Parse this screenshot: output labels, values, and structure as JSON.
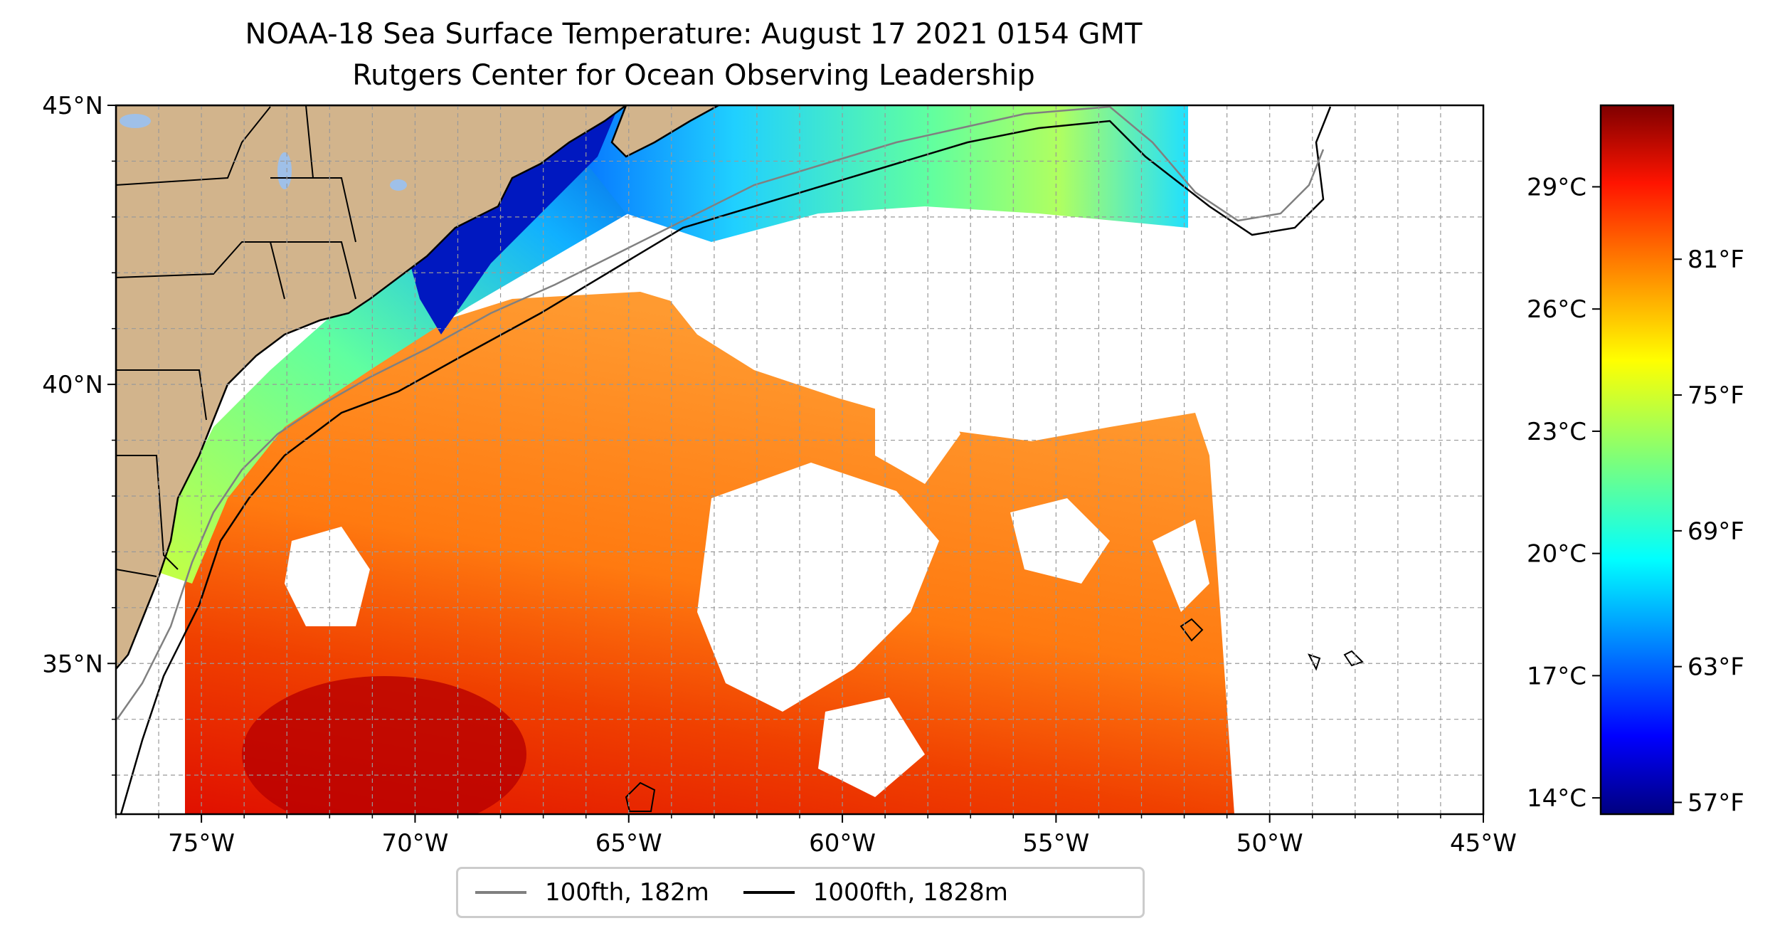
{
  "title": {
    "line1": "NOAA-18 Sea Surface Temperature: August 17 2021 0154 GMT",
    "line2": "Rutgers Center for Ocean Observing Leadership"
  },
  "map": {
    "lon_range": [
      -77,
      -45
    ],
    "lat_range": [
      32.3,
      45
    ],
    "lon_ticks": [
      {
        "value": -75,
        "label": "75°W"
      },
      {
        "value": -70,
        "label": "70°W"
      },
      {
        "value": -65,
        "label": "65°W"
      },
      {
        "value": -60,
        "label": "60°W"
      },
      {
        "value": -55,
        "label": "55°W"
      },
      {
        "value": -50,
        "label": "50°W"
      },
      {
        "value": -45,
        "label": "45°W"
      }
    ],
    "lat_ticks": [
      {
        "value": 45,
        "label": "45°N"
      },
      {
        "value": 40,
        "label": "40°N"
      },
      {
        "value": 35,
        "label": "35°N"
      }
    ],
    "gridlines": "dashed",
    "land_color": "#d2b48c",
    "lake_color": "#9fc0e8",
    "no_data_color": "#ffffff"
  },
  "colorbar": {
    "colormap": "jet",
    "celsius_range": [
      13.6,
      31
    ],
    "celsius_ticks": [
      {
        "value": 14,
        "label": "14°C"
      },
      {
        "value": 17,
        "label": "17°C"
      },
      {
        "value": 20,
        "label": "20°C"
      },
      {
        "value": 23,
        "label": "23°C"
      },
      {
        "value": 26,
        "label": "26°C"
      },
      {
        "value": 29,
        "label": "29°C"
      }
    ],
    "fahrenheit_ticks": [
      {
        "value": 57,
        "label": "57°F"
      },
      {
        "value": 63,
        "label": "63°F"
      },
      {
        "value": 69,
        "label": "69°F"
      },
      {
        "value": 75,
        "label": "75°F"
      },
      {
        "value": 81,
        "label": "81°F"
      }
    ]
  },
  "legend": {
    "placement": "bottom-center",
    "items": [
      {
        "label": "100fth, 182m",
        "color": "#808080"
      },
      {
        "label": "1000fth, 1828m",
        "color": "#000000"
      }
    ]
  }
}
